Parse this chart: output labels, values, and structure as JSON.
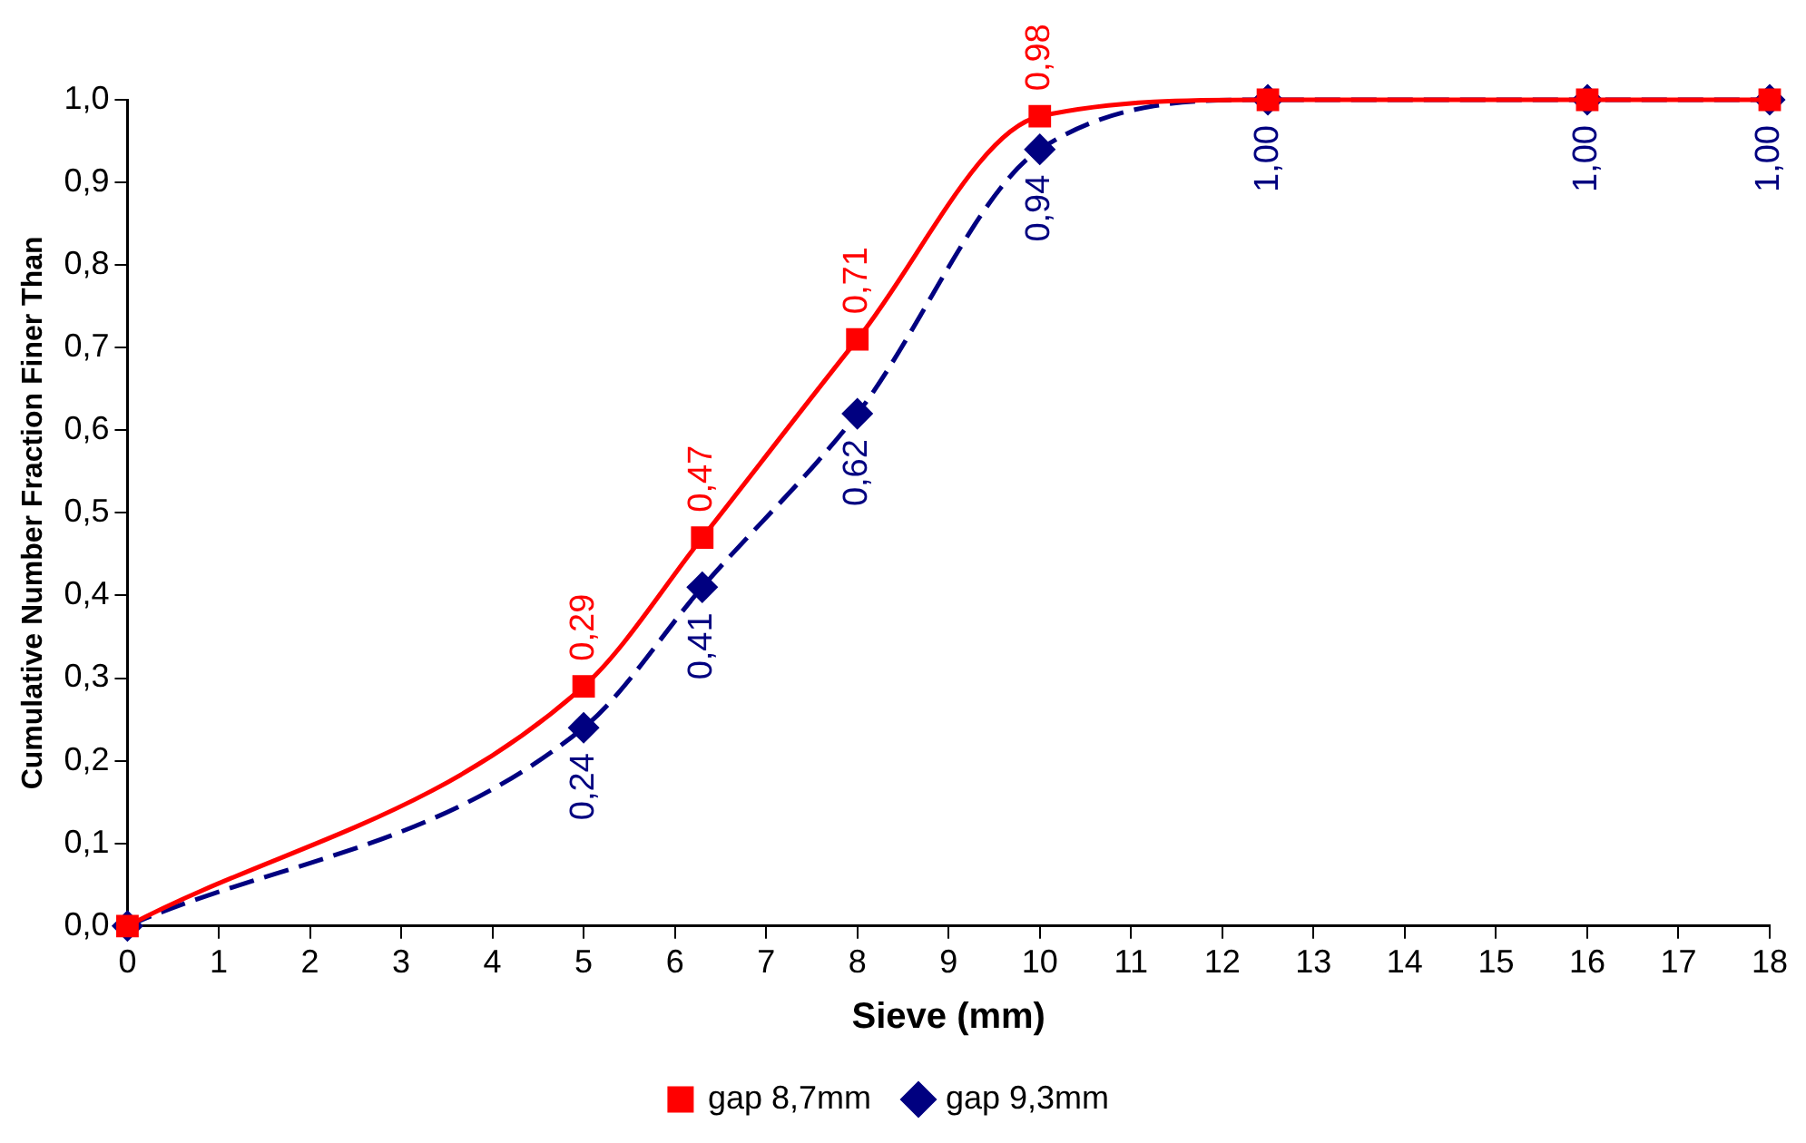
{
  "chart_data": {
    "type": "line",
    "xlabel": "Sieve (mm)",
    "ylabel": "Cumulative Number Fraction Finer Than",
    "xlim": [
      0,
      18
    ],
    "xticks": [
      0,
      1,
      2,
      3,
      4,
      5,
      6,
      7,
      8,
      9,
      10,
      11,
      12,
      13,
      14,
      15,
      16,
      17,
      18
    ],
    "ylim": [
      0,
      1
    ],
    "yticks": [
      {
        "value": 0,
        "label": "0,0"
      },
      {
        "value": 0.1,
        "label": "0,1"
      },
      {
        "value": 0.2,
        "label": "0,2"
      },
      {
        "value": 0.3,
        "label": "0,3"
      },
      {
        "value": 0.4,
        "label": "0,4"
      },
      {
        "value": 0.5,
        "label": "0,5"
      },
      {
        "value": 0.6,
        "label": "0,6"
      },
      {
        "value": 0.7,
        "label": "0,7"
      },
      {
        "value": 0.8,
        "label": "0,8"
      },
      {
        "value": 0.9,
        "label": "0,9"
      },
      {
        "value": 1,
        "label": "1,0"
      }
    ],
    "grid": false,
    "legend": "bottom",
    "series": [
      {
        "name": "gap 9,3mm",
        "color": "#000080",
        "marker": "diamond",
        "line_style": "dashed",
        "x": [
          0,
          5,
          6.3,
          8,
          10,
          12.5,
          16,
          18
        ],
        "values": [
          0,
          0.24,
          0.41,
          0.62,
          0.94,
          1,
          1,
          1
        ],
        "value_labels": [
          null,
          "0,24",
          "0,41",
          "0,62",
          "0,94",
          "1,00",
          "1,00",
          "1,00"
        ]
      },
      {
        "name": "gap 8,7mm",
        "color": "#ff0000",
        "marker": "square",
        "line_style": "solid",
        "x": [
          0,
          5,
          6.3,
          8,
          10,
          12.5,
          16,
          18
        ],
        "values": [
          0,
          0.29,
          0.47,
          0.71,
          0.98,
          1,
          1,
          1
        ],
        "value_labels": [
          null,
          "0,29",
          "0,47",
          "0,71",
          "0,98",
          null,
          null,
          null
        ]
      }
    ]
  }
}
